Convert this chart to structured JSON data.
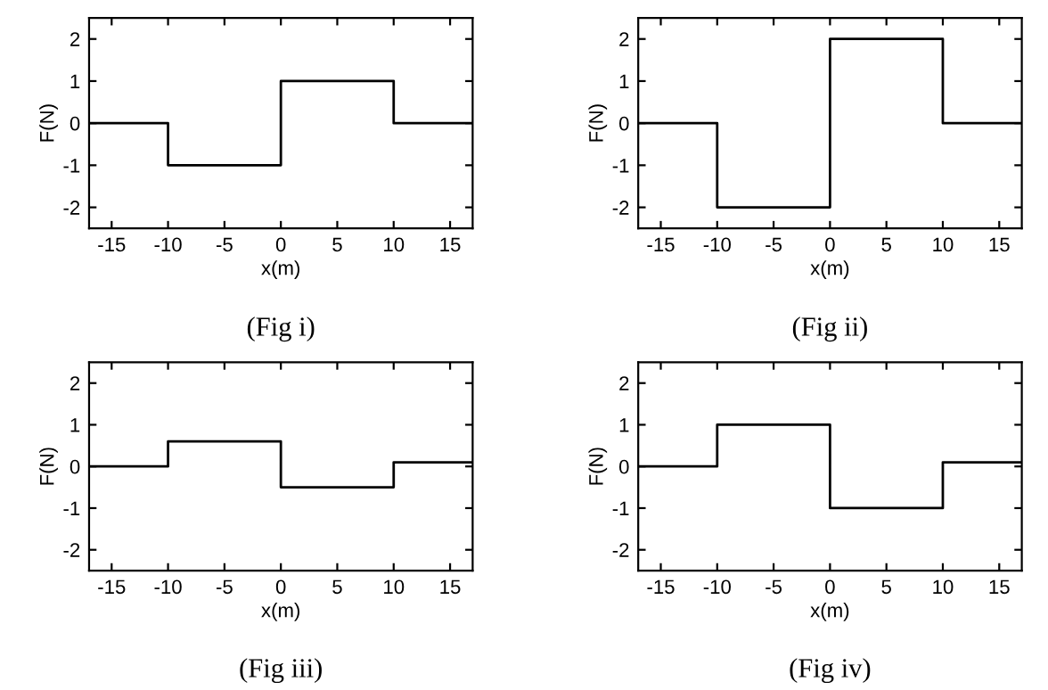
{
  "chart_data": [
    {
      "type": "step",
      "xlabel": "x(m)",
      "ylabel": "F(N)",
      "annotations": [
        "(Fig i)"
      ],
      "x": [
        -17,
        -10,
        0,
        10,
        17
      ],
      "series": [
        {
          "color": "#000000",
          "values": [
            0,
            -1,
            1,
            0,
            0
          ]
        }
      ],
      "xlim": [
        -17,
        17
      ],
      "ylim": [
        -2.5,
        2.5
      ],
      "xticks": [
        -15,
        -10,
        -5,
        0,
        5,
        10,
        15
      ],
      "yticks": [
        -2,
        -1,
        0,
        1,
        2
      ],
      "grid": false,
      "legend": false
    },
    {
      "type": "step",
      "xlabel": "x(m)",
      "ylabel": "F(N)",
      "annotations": [
        "(Fig ii)"
      ],
      "x": [
        -17,
        -10,
        0,
        10,
        17
      ],
      "series": [
        {
          "color": "#000000",
          "values": [
            0,
            -2,
            2,
            0,
            0
          ]
        }
      ],
      "xlim": [
        -17,
        17
      ],
      "ylim": [
        -2.5,
        2.5
      ],
      "xticks": [
        -15,
        -10,
        -5,
        0,
        5,
        10,
        15
      ],
      "yticks": [
        -2,
        -1,
        0,
        1,
        2
      ],
      "grid": false,
      "legend": false
    },
    {
      "type": "step",
      "xlabel": "x(m)",
      "ylabel": "F(N)",
      "annotations": [
        "(Fig iii)"
      ],
      "x": [
        -17,
        -10,
        0,
        10,
        17
      ],
      "series": [
        {
          "color": "#000000",
          "values": [
            0,
            0.6,
            -0.5,
            0.1,
            0.1
          ]
        }
      ],
      "xlim": [
        -17,
        17
      ],
      "ylim": [
        -2.5,
        2.5
      ],
      "xticks": [
        -15,
        -10,
        -5,
        0,
        5,
        10,
        15
      ],
      "yticks": [
        -2,
        -1,
        0,
        1,
        2
      ],
      "grid": false,
      "legend": false
    },
    {
      "type": "step",
      "xlabel": "x(m)",
      "ylabel": "F(N)",
      "annotations": [
        "(Fig iv)"
      ],
      "x": [
        -17,
        -10,
        0,
        10,
        17
      ],
      "series": [
        {
          "color": "#000000",
          "values": [
            0,
            1,
            -1,
            0.1,
            0.1
          ]
        }
      ],
      "xlim": [
        -17,
        17
      ],
      "ylim": [
        -2.5,
        2.5
      ],
      "xticks": [
        -15,
        -10,
        -5,
        0,
        5,
        10,
        15
      ],
      "yticks": [
        -2,
        -1,
        0,
        1,
        2
      ],
      "grid": false,
      "legend": false
    }
  ]
}
